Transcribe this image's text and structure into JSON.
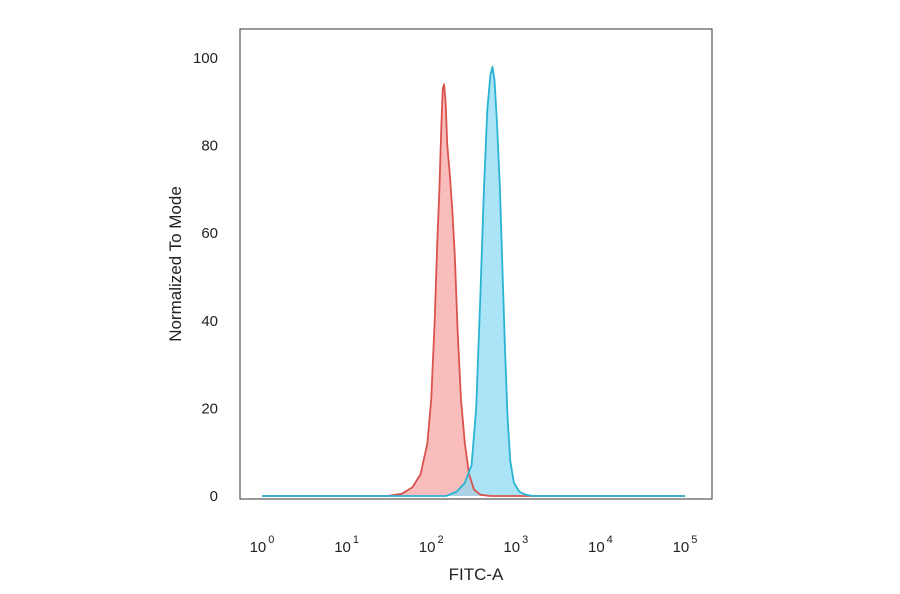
{
  "chart_data": {
    "type": "area",
    "title": "",
    "xlabel": "FITC-A",
    "ylabel": "Normalized To Mode",
    "x_scale": "log",
    "xlim": [
      1,
      100000
    ],
    "ylim": [
      0,
      100
    ],
    "x_ticks": [
      {
        "base": "10",
        "exp": "0",
        "value": 1
      },
      {
        "base": "10",
        "exp": "1",
        "value": 10
      },
      {
        "base": "10",
        "exp": "2",
        "value": 100
      },
      {
        "base": "10",
        "exp": "3",
        "value": 1000
      },
      {
        "base": "10",
        "exp": "4",
        "value": 10000
      },
      {
        "base": "10",
        "exp": "5",
        "value": 100000
      }
    ],
    "y_ticks": [
      "0",
      "20",
      "40",
      "60",
      "80",
      "100"
    ],
    "grid": false,
    "legend": "none",
    "series": [
      {
        "color": "#d9534f",
        "fill": "#f7a3a1",
        "points": [
          [
            1,
            0
          ],
          [
            30,
            0
          ],
          [
            45,
            0.5
          ],
          [
            60,
            2
          ],
          [
            75,
            5
          ],
          [
            90,
            12
          ],
          [
            100,
            22
          ],
          [
            110,
            40
          ],
          [
            118,
            58
          ],
          [
            125,
            70
          ],
          [
            132,
            85
          ],
          [
            137,
            93
          ],
          [
            142,
            94
          ],
          [
            148,
            90
          ],
          [
            155,
            80
          ],
          [
            165,
            74
          ],
          [
            178,
            65
          ],
          [
            190,
            55
          ],
          [
            205,
            38
          ],
          [
            225,
            22
          ],
          [
            250,
            12
          ],
          [
            280,
            5
          ],
          [
            320,
            1.5
          ],
          [
            380,
            0.3
          ],
          [
            500,
            0
          ],
          [
            100000,
            0
          ]
        ]
      },
      {
        "color": "#2bb3d4",
        "fill": "#8ad9f2",
        "points": [
          [
            1,
            0
          ],
          [
            150,
            0
          ],
          [
            200,
            1
          ],
          [
            250,
            3
          ],
          [
            300,
            7
          ],
          [
            340,
            20
          ],
          [
            380,
            45
          ],
          [
            420,
            70
          ],
          [
            460,
            88
          ],
          [
            500,
            96
          ],
          [
            530,
            98
          ],
          [
            560,
            95
          ],
          [
            600,
            85
          ],
          [
            650,
            70
          ],
          [
            700,
            50
          ],
          [
            750,
            32
          ],
          [
            800,
            18
          ],
          [
            860,
            8
          ],
          [
            950,
            3
          ],
          [
            1100,
            1
          ],
          [
            1300,
            0.3
          ],
          [
            1600,
            0
          ],
          [
            100000,
            0
          ]
        ]
      }
    ]
  },
  "colors": {
    "frame": "#555555",
    "red_line": "#d9534f",
    "blue_line": "#2bb3d4",
    "overlap": "#a9a8c6"
  }
}
